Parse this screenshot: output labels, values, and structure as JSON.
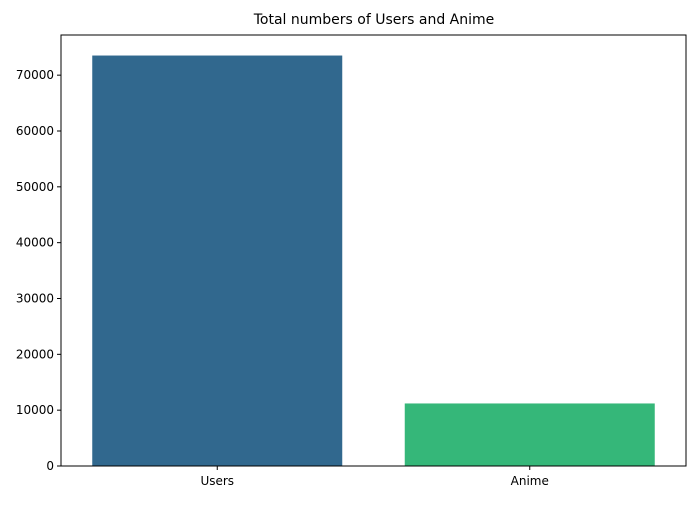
{
  "chart_data": {
    "type": "bar",
    "title": "Total numbers of Users and Anime",
    "xlabel": "",
    "ylabel": "",
    "categories": [
      "Users",
      "Anime"
    ],
    "values": [
      73515,
      11200
    ],
    "colors": [
      "#31688e",
      "#35b779"
    ],
    "ylim": [
      0,
      77192
    ],
    "yticks": [
      0,
      10000,
      20000,
      30000,
      40000,
      50000,
      60000,
      70000
    ],
    "ytick_labels": [
      "0",
      "10000",
      "20000",
      "30000",
      "40000",
      "50000",
      "60000",
      "70000"
    ],
    "grid": false,
    "legend": "none"
  }
}
